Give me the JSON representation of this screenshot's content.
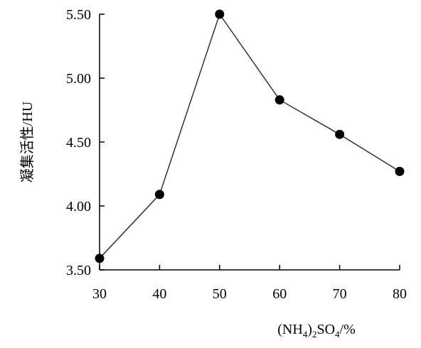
{
  "chart_data": {
    "type": "line",
    "title": "",
    "xlabel": "(NH4)2SO4/%",
    "xlabel_parts": {
      "open": "(NH",
      "sub1": "4",
      "mid": ")",
      "sub2": "2",
      "so": "SO",
      "sub3": "4",
      "tail": "/%"
    },
    "ylabel": "凝集活性/HU",
    "x": [
      30,
      40,
      50,
      60,
      70,
      80
    ],
    "series": [
      {
        "values": [
          3.59,
          4.09,
          5.5,
          4.83,
          4.56,
          4.27
        ]
      }
    ],
    "xlim": [
      30,
      80
    ],
    "ylim": [
      3.5,
      5.5
    ],
    "xticks": [
      "30",
      "40",
      "50",
      "60",
      "70",
      "80"
    ],
    "yticks": [
      "3.50",
      "4.00",
      "4.50",
      "5.00",
      "5.50"
    ],
    "grid": false,
    "marker": "filled-circle",
    "colors": {
      "line": "#333333",
      "marker": "#000000",
      "axis": "#000000"
    }
  }
}
